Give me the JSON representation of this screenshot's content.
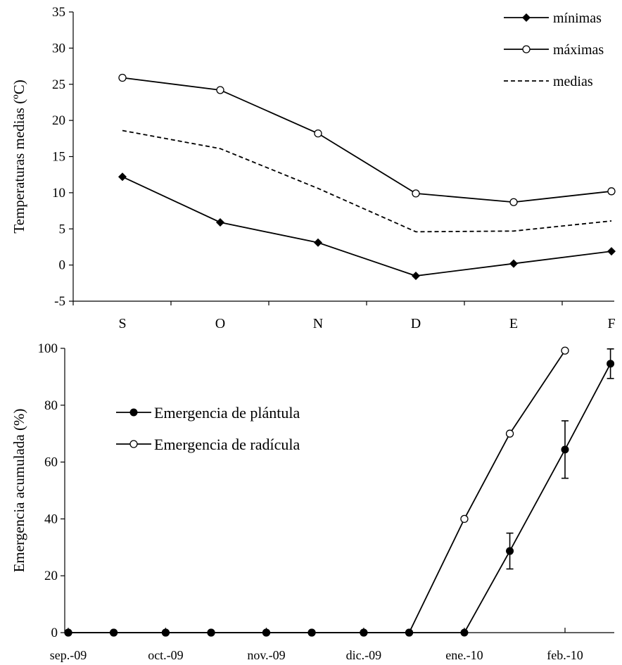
{
  "chart_data": [
    {
      "type": "line",
      "xlabel": "",
      "ylabel": "Temperaturas medias  (ºC)",
      "categories": [
        "S",
        "O",
        "N",
        "D",
        "E",
        "F"
      ],
      "ylim": [
        -5,
        35
      ],
      "yticks": [
        "-5",
        "0",
        "5",
        "10",
        "15",
        "20",
        "25",
        "30",
        "35"
      ],
      "grid": false,
      "legend_position": "top-right",
      "series": [
        {
          "name": "mínimas",
          "marker": "diamond-filled",
          "line": "solid",
          "values": [
            12.2,
            5.9,
            3.1,
            -1.5,
            0.2,
            1.9
          ]
        },
        {
          "name": "máximas",
          "marker": "circle-open",
          "line": "solid",
          "values": [
            25.9,
            24.2,
            18.2,
            9.9,
            8.7,
            10.2
          ]
        },
        {
          "name": "medias",
          "marker": "none",
          "line": "dashed",
          "values": [
            18.6,
            16.1,
            10.6,
            4.6,
            4.7,
            6.1
          ]
        }
      ]
    },
    {
      "type": "line",
      "xlabel": "",
      "ylabel": "Emergencia acumulada (%)",
      "xticks": [
        "sep.-09",
        "oct.-09",
        "nov.-09",
        "dic.-09",
        "ene.-10",
        "feb.-10"
      ],
      "ylim": [
        0,
        100
      ],
      "yticks": [
        "0",
        "20",
        "40",
        "60",
        "80",
        "100"
      ],
      "grid": false,
      "legend_position": "top-left",
      "series": [
        {
          "name": "Emergencia de plántula",
          "marker": "circle-filled",
          "points": [
            {
              "x": "2009-09-01",
              "y": 0
            },
            {
              "x": "2009-09-15",
              "y": 0
            },
            {
              "x": "2009-10-01",
              "y": 0
            },
            {
              "x": "2009-10-15",
              "y": 0
            },
            {
              "x": "2009-11-01",
              "y": 0
            },
            {
              "x": "2009-11-15",
              "y": 0
            },
            {
              "x": "2009-12-01",
              "y": 0
            },
            {
              "x": "2009-12-15",
              "y": 0
            },
            {
              "x": "2010-01-01",
              "y": 0
            },
            {
              "x": "2010-01-15",
              "y": 28.7,
              "err": 6.3
            },
            {
              "x": "2010-02-01",
              "y": 64.4,
              "err": 10.1
            },
            {
              "x": "2010-02-15",
              "y": 94.6,
              "err": 5.2
            }
          ]
        },
        {
          "name": "Emergencia de radícula",
          "marker": "circle-open",
          "points": [
            {
              "x": "2009-09-01",
              "y": 0
            },
            {
              "x": "2009-09-15",
              "y": 0
            },
            {
              "x": "2009-10-01",
              "y": 0
            },
            {
              "x": "2009-10-15",
              "y": 0
            },
            {
              "x": "2009-11-01",
              "y": 0
            },
            {
              "x": "2009-11-15",
              "y": 0
            },
            {
              "x": "2009-12-01",
              "y": 0
            },
            {
              "x": "2009-12-15",
              "y": 0
            },
            {
              "x": "2010-01-01",
              "y": 40
            },
            {
              "x": "2010-01-15",
              "y": 70
            },
            {
              "x": "2010-02-01",
              "y": 99.2
            }
          ]
        }
      ]
    }
  ]
}
